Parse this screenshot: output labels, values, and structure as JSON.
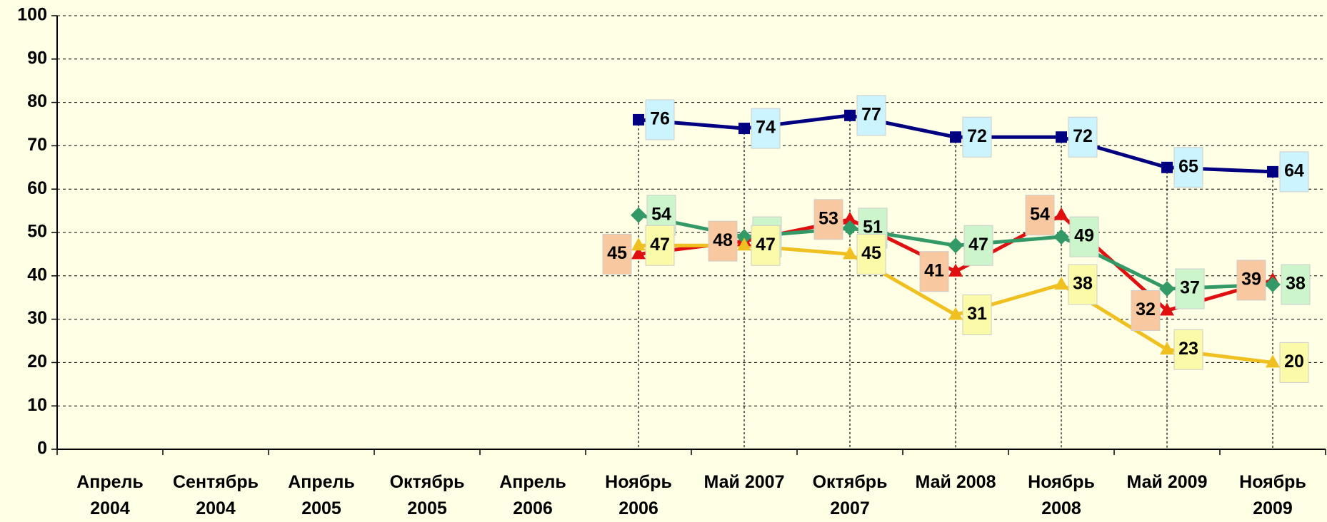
{
  "chart_data": {
    "type": "line",
    "categories": [
      "Апрель\n2004",
      "Сентябрь\n2004",
      "Апрель\n2005",
      "Октябрь\n2005",
      "Апрель\n2006",
      "Ноябрь\n2006",
      "Май 2007",
      "Октябрь\n2007",
      "Май 2008",
      "Ноябрь\n2008",
      "Май 2009",
      "Ноябрь\n2009"
    ],
    "series": [
      {
        "color": "#000080",
        "marker": "square",
        "label_color": "#ccf4ff",
        "values": [
          null,
          null,
          null,
          null,
          null,
          76,
          74,
          77,
          72,
          72,
          65,
          64
        ]
      },
      {
        "color": "#e01010",
        "marker": "triangle",
        "label_color": "#f8c8a0",
        "values": [
          null,
          null,
          null,
          null,
          null,
          45,
          48,
          53,
          41,
          54,
          32,
          39
        ]
      },
      {
        "color": "#339966",
        "marker": "diamond",
        "label_color": "#ccf5cc",
        "values": [
          null,
          null,
          null,
          null,
          null,
          54,
          49,
          51,
          47,
          49,
          37,
          38
        ]
      },
      {
        "color": "#f0c020",
        "marker": "triangle",
        "label_color": "#fafaa8",
        "values": [
          null,
          null,
          null,
          null,
          null,
          47,
          47,
          45,
          31,
          38,
          23,
          20
        ]
      }
    ],
    "ylim": [
      0,
      100
    ],
    "yticks": [
      0,
      10,
      20,
      30,
      40,
      50,
      60,
      70,
      80,
      90,
      100
    ],
    "grid": true
  }
}
